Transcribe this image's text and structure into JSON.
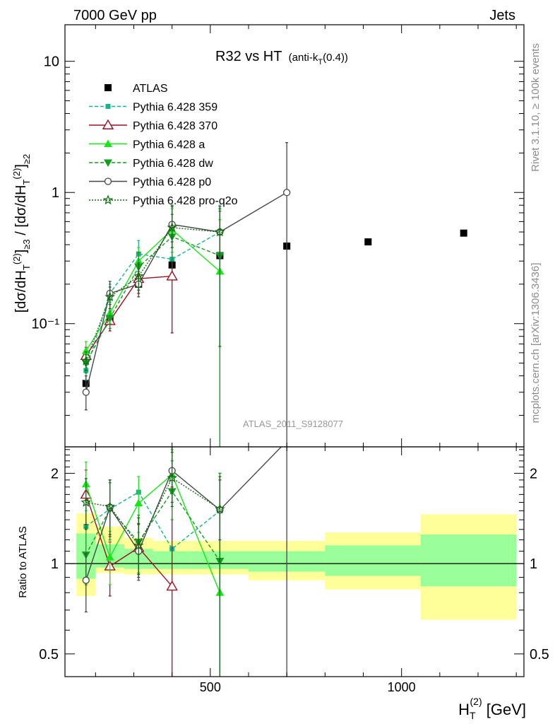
{
  "header": {
    "left": "7000 GeV pp",
    "right": "Jets"
  },
  "side": {
    "rivet": "Rivet 3.1.10, ≥ 100k events",
    "mcplots": "mcplots.cern.ch [arXiv:1306.3436]"
  },
  "watermark": "ATLAS_2011_S9128077",
  "main_title": {
    "main": "R32 vs HT",
    "sub_a": "(anti-k",
    "sub_sub": "T",
    "sub_b": "(0.4))"
  },
  "ylabel_top": "[dσ/dH_T^(2)]_≥3 / [dσ/dH_T^(2)]_≥2",
  "ylabel_bottom": "Ratio to ATLAS",
  "xlabel": {
    "main": "H",
    "sub": "T",
    "sup": "(2)",
    "unit": " [GeV]"
  },
  "colors": {
    "atlas": "#000000",
    "p359": "#17b38a",
    "p370": "#9b1126",
    "pa": "#19e619",
    "pdw": "#169a22",
    "pp0": "#474747",
    "pq2o": "#0e6b0e",
    "band_outer": "#ffff99",
    "band_inner": "#99ff99"
  },
  "chart_data": [
    {
      "type": "scatter",
      "title": "R32 vs HT (anti-kT(0.4))",
      "xlabel": "H_T^(2) [GeV]",
      "ylabel": "[dσ/dH_T^(2)]_≥3 / [dσ/dH_T^(2)]_≥2",
      "xscale": "linear",
      "yscale": "log",
      "xlim": [
        120,
        1320
      ],
      "ylim": [
        0.0115,
        19
      ],
      "xticks": [
        500,
        1000
      ],
      "yticks": [
        0.1,
        1,
        10
      ],
      "ytick_labels": [
        "10⁻¹",
        "1",
        "10"
      ],
      "legend_position": "top-left",
      "series": [
        {
          "name": "ATLAS",
          "key": "atlas",
          "style": "square",
          "x": [
            175,
            237.5,
            312.5,
            400,
            525,
            700,
            912.5,
            1162.5
          ],
          "y": [
            0.035,
            0.11,
            0.2,
            0.28,
            0.33,
            0.39,
            0.42,
            0.49
          ]
        },
        {
          "name": "Pythia 6.428 359",
          "key": "p359",
          "style": "small-square-dashed",
          "x": [
            175,
            237.5,
            312.5,
            400,
            525
          ],
          "y": [
            0.044,
            0.17,
            0.34,
            0.31,
            0.5
          ],
          "err_lo": [
            0.037,
            0.15,
            0.26,
            0.22,
            0.33
          ],
          "err_hi": [
            0.052,
            0.2,
            0.43,
            0.5,
            0.8
          ]
        },
        {
          "name": "Pythia 6.428 370",
          "key": "p370",
          "style": "open-triangle",
          "x": [
            175,
            237.5,
            312.5,
            400
          ],
          "y": [
            0.057,
            0.105,
            0.22,
            0.23
          ],
          "err_lo": [
            0.048,
            0.088,
            0.17,
            0.085
          ],
          "err_hi": [
            0.066,
            0.125,
            0.28,
            0.5
          ]
        },
        {
          "name": "Pythia 6.428 a",
          "key": "pa",
          "style": "filled-triangle",
          "x": [
            175,
            237.5,
            312.5,
            400,
            525
          ],
          "y": [
            0.062,
            0.12,
            0.3,
            0.52,
            0.25
          ],
          "err_lo": [
            0.052,
            0.1,
            0.24,
            0.35,
            0.0001
          ],
          "err_hi": [
            0.073,
            0.145,
            0.38,
            0.75,
            0.62
          ]
        },
        {
          "name": "Pythia 6.428 dw",
          "key": "pdw",
          "style": "down-triangle-dashed",
          "x": [
            175,
            237.5,
            312.5,
            400,
            525
          ],
          "y": [
            0.05,
            0.11,
            0.27,
            0.46,
            0.33
          ],
          "err_lo": [
            0.042,
            0.092,
            0.21,
            0.3,
            0.0001
          ],
          "err_hi": [
            0.058,
            0.13,
            0.35,
            0.68,
            0.72
          ]
        },
        {
          "name": "Pythia 6.428 p0",
          "key": "pp0",
          "style": "open-circle",
          "x": [
            175,
            237.5,
            312.5,
            400,
            525,
            700
          ],
          "y": [
            0.03,
            0.17,
            0.2,
            0.57,
            0.5,
            1.0
          ],
          "err_lo": [
            0.022,
            0.14,
            0.16,
            0.42,
            0.33,
            0.0001
          ],
          "err_hi": [
            0.04,
            0.21,
            0.25,
            0.78,
            0.78,
            2.4
          ]
        },
        {
          "name": "Pythia 6.428 pro-q2o",
          "key": "pq2o",
          "style": "star-dotted",
          "x": [
            175,
            237.5,
            312.5,
            400,
            525
          ],
          "y": [
            0.052,
            0.16,
            0.23,
            0.54,
            0.5
          ],
          "err_lo": [
            0.044,
            0.13,
            0.18,
            0.38,
            0.067
          ],
          "err_hi": [
            0.061,
            0.19,
            0.29,
            0.8,
            0.75
          ]
        }
      ]
    },
    {
      "type": "scatter",
      "ylabel": "Ratio to ATLAS",
      "xlabel": "H_T^(2) [GeV]",
      "xscale": "linear",
      "yscale": "log",
      "xlim": [
        120,
        1320
      ],
      "ylim": [
        0.42,
        2.45
      ],
      "yticks": [
        0.5,
        1,
        2
      ],
      "ytick_labels": [
        "0.5",
        "1",
        "2"
      ],
      "xticks": [
        500,
        1000
      ],
      "bands": {
        "edges": [
          150,
          200,
          275,
          350,
          450,
          600,
          800,
          1050,
          1300
        ],
        "outer_lo": [
          0.78,
          0.93,
          0.92,
          0.92,
          0.92,
          0.88,
          0.82,
          0.65
        ],
        "outer_hi": [
          1.47,
          1.33,
          1.22,
          1.19,
          1.19,
          1.19,
          1.27,
          1.46
        ],
        "inner_lo": [
          0.89,
          0.97,
          0.96,
          0.96,
          0.96,
          0.94,
          0.91,
          0.84
        ],
        "inner_hi": [
          1.26,
          1.16,
          1.12,
          1.1,
          1.1,
          1.1,
          1.15,
          1.25
        ]
      },
      "series": [
        {
          "key": "p359",
          "style": "small-square-dashed",
          "x": [
            175,
            237.5,
            312.5,
            400,
            525
          ],
          "y": [
            1.33,
            1.52,
            1.73,
            1.12,
            1.5
          ]
        },
        {
          "key": "p370",
          "style": "open-triangle",
          "x": [
            175,
            237.5,
            312.5,
            400
          ],
          "y": [
            1.7,
            0.98,
            1.13,
            0.84
          ],
          "err_lo": [
            1.35,
            0.78,
            0.9,
            0.3
          ],
          "err_hi": [
            2.05,
            1.18,
            1.36,
            1.8
          ]
        },
        {
          "key": "pa",
          "style": "filled-triangle",
          "x": [
            175,
            237.5,
            312.5,
            400,
            525
          ],
          "y": [
            1.84,
            1.05,
            1.59,
            1.98,
            0.8
          ],
          "err_lo": [
            1.5,
            0.85,
            1.27,
            1.6,
            0.3
          ],
          "err_hi": [
            2.18,
            1.28,
            1.95,
            2.4,
            2.0
          ]
        },
        {
          "key": "pdw",
          "style": "down-triangle-dashed",
          "x": [
            175,
            237.5,
            312.5,
            400,
            525
          ],
          "y": [
            1.07,
            1.52,
            1.18,
            1.74,
            1.02
          ],
          "err_lo": [
            0.85,
            1.2,
            0.93,
            1.4,
            0.3
          ],
          "err_hi": [
            1.32,
            1.86,
            1.45,
            2.2,
            2.0
          ]
        },
        {
          "key": "pp0",
          "style": "open-circle",
          "x": [
            175,
            237.5,
            312.5,
            400,
            525,
            700
          ],
          "y": [
            0.88,
            1.54,
            1.1,
            2.04,
            1.51,
            2.56
          ],
          "err_lo": [
            0.69,
            1.23,
            0.88,
            1.6,
            1.2,
            0.3
          ],
          "err_hi": [
            1.08,
            1.9,
            1.35,
            2.45,
            1.9,
            2.6
          ]
        },
        {
          "key": "pq2o",
          "style": "star-dotted",
          "x": [
            175,
            237.5,
            312.5,
            400,
            525
          ],
          "y": [
            1.6,
            1.55,
            1.15,
            1.93,
            1.52
          ],
          "err_lo": [
            1.3,
            1.25,
            0.92,
            1.55,
            0.3
          ],
          "err_hi": [
            1.92,
            1.9,
            1.42,
            2.35,
            1.95
          ]
        }
      ]
    }
  ]
}
